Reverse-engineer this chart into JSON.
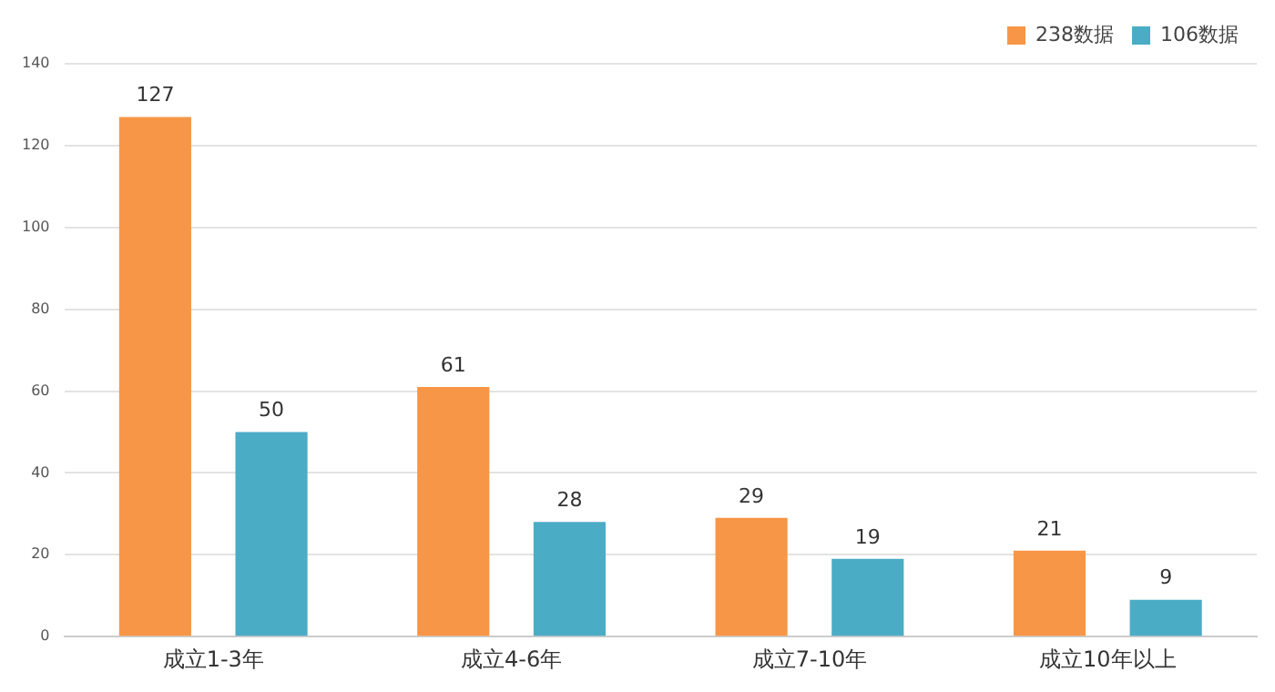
{
  "chart_data": {
    "type": "bar",
    "categories": [
      "成立1-3年",
      "成立4-6年",
      "成立7-10年",
      "成立10年以上"
    ],
    "series": [
      {
        "name": "238数据",
        "color": "#f79646",
        "values": [
          127,
          61,
          29,
          21
        ]
      },
      {
        "name": "106数据",
        "color": "#4bacc6",
        "values": [
          50,
          28,
          19,
          9
        ]
      }
    ],
    "ylim": [
      0,
      140
    ],
    "yticks": [
      0,
      20,
      40,
      60,
      80,
      100,
      120,
      140
    ],
    "grid": "y",
    "legend": "top right",
    "data_labels": true
  }
}
